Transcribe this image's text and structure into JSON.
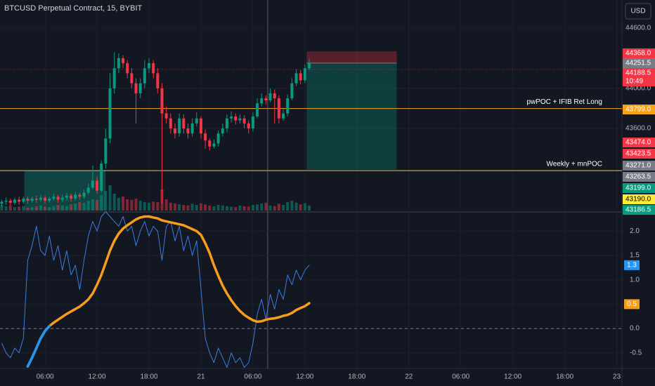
{
  "title": "BTCUSD Perpetual Contract, 15, BYBIT",
  "currency_button": "USD",
  "chart_data": [
    {
      "type": "candlestick",
      "x": [
        1,
        1.5,
        2,
        2.5,
        3,
        3.5,
        4,
        4.5,
        5,
        5.5,
        6,
        6.5,
        7,
        7.5,
        8,
        8.5,
        9,
        9.5,
        10,
        10.5,
        11,
        11.5,
        12,
        12.5,
        13,
        13.5,
        14,
        14.5,
        15,
        15.5,
        16,
        16.5,
        17,
        17.5,
        18,
        18.5,
        19,
        19.5,
        20,
        20.5,
        21,
        21.5,
        22,
        22.5,
        23,
        23.5,
        24,
        24.5,
        25,
        25.5,
        26,
        26.5,
        27,
        27.5,
        28,
        28.5,
        29,
        29.5,
        30,
        30.5,
        31,
        31.5,
        32,
        32.5,
        33,
        33.5,
        34,
        34.5,
        35,
        35.5,
        36,
        36.5
      ],
      "open": [
        42850,
        42870,
        42880,
        42860,
        42890,
        42870,
        42900,
        42880,
        42900,
        42890,
        42910,
        42880,
        42900,
        42920,
        42890,
        42910,
        42930,
        42900,
        42940,
        42920,
        42960,
        43010,
        43080,
        42980,
        43250,
        43500,
        44000,
        44200,
        44300,
        44250,
        44150,
        44050,
        43950,
        44050,
        44200,
        44250,
        44150,
        44000,
        43750,
        43700,
        43600,
        43550,
        43700,
        43600,
        43550,
        43650,
        43700,
        43550,
        43480,
        43420,
        43450,
        43550,
        43600,
        43700,
        43720,
        43680,
        43700,
        43650,
        43600,
        43720,
        43850,
        43900,
        43880,
        43950,
        43900,
        43700,
        43750,
        43900,
        44050,
        44150,
        44080,
        44200
      ],
      "high": [
        42890,
        42910,
        42900,
        42910,
        42920,
        42920,
        42920,
        42920,
        42930,
        42940,
        42930,
        42920,
        42950,
        42940,
        42940,
        42960,
        42950,
        42970,
        42960,
        42990,
        43050,
        43230,
        43120,
        43280,
        43600,
        44150,
        44360,
        44350,
        44330,
        44280,
        44200,
        44100,
        44100,
        44280,
        44300,
        44280,
        44200,
        44050,
        43820,
        43750,
        43650,
        43750,
        43740,
        43650,
        43700,
        43760,
        43720,
        43590,
        43500,
        43490,
        43580,
        43650,
        43740,
        43770,
        43750,
        43740,
        43730,
        43680,
        43760,
        43900,
        43950,
        43930,
        44000,
        43990,
        43930,
        43790,
        43940,
        44100,
        44190,
        44180,
        44240,
        44300
      ],
      "low": [
        42820,
        42840,
        42830,
        42840,
        42840,
        42850,
        42850,
        42860,
        42860,
        42870,
        42850,
        42860,
        42880,
        42860,
        42870,
        42880,
        42870,
        42880,
        42890,
        42900,
        42940,
        42990,
        42950,
        42960,
        43200,
        43450,
        43950,
        44150,
        44200,
        44100,
        44000,
        43650,
        43900,
        44000,
        44150,
        44100,
        43950,
        42850,
        43650,
        43550,
        43500,
        43520,
        43550,
        43500,
        43520,
        43620,
        43500,
        43400,
        43380,
        43400,
        43420,
        43520,
        43560,
        43660,
        43640,
        43650,
        43600,
        43550,
        43570,
        43700,
        43820,
        43840,
        43860,
        43650,
        43650,
        43680,
        43720,
        43880,
        44020,
        44040,
        44050,
        44180
      ],
      "close": [
        42870,
        42880,
        42860,
        42890,
        42870,
        42900,
        42880,
        42900,
        42890,
        42910,
        42880,
        42900,
        42920,
        42890,
        42910,
        42930,
        42900,
        42940,
        42920,
        42960,
        43010,
        43080,
        42980,
        43250,
        43500,
        44000,
        44200,
        44300,
        44250,
        44150,
        44050,
        43950,
        44050,
        44200,
        44250,
        44150,
        44000,
        43750,
        43700,
        43600,
        43550,
        43700,
        43600,
        43550,
        43650,
        43700,
        43550,
        43480,
        43420,
        43450,
        43550,
        43600,
        43700,
        43720,
        43680,
        43700,
        43650,
        43600,
        43720,
        43850,
        43900,
        43880,
        43950,
        43900,
        43700,
        43750,
        43900,
        44050,
        44150,
        44080,
        44200,
        44250
      ],
      "volume": [
        20,
        15,
        18,
        12,
        14,
        16,
        10,
        12,
        15,
        18,
        14,
        12,
        16,
        20,
        18,
        15,
        22,
        25,
        30,
        28,
        35,
        40,
        38,
        55,
        70,
        90,
        60,
        45,
        50,
        40,
        38,
        42,
        35,
        30,
        28,
        32,
        30,
        75,
        40,
        28,
        25,
        22,
        20,
        18,
        24,
        20,
        26,
        22,
        18,
        15,
        20,
        18,
        16,
        14,
        12,
        18,
        15,
        14,
        20,
        22,
        25,
        28,
        18,
        16,
        24,
        20,
        30,
        35,
        28,
        22,
        26,
        18
      ],
      "volume_lim": [
        0,
        100
      ],
      "up_color": "#089981",
      "down_color": "#f23645",
      "xlim": [
        0.8,
        72.6
      ],
      "ylim": [
        42782,
        44880
      ],
      "yticks": [
        {
          "value": 44600,
          "label": "44600.0"
        },
        {
          "value": 44000,
          "label": "44000.0"
        },
        {
          "value": 43600,
          "label": "43600.0"
        }
      ],
      "levels": [
        {
          "label": "pwPOC + IFIB Ret Long",
          "value": 43799,
          "color": "#f7a21b"
        },
        {
          "label": "Weekly + mnPOC",
          "value": 43180,
          "color": "#e5c34a"
        }
      ],
      "zone": {
        "x_range": [
          3.6,
          13
        ],
        "top": 43180,
        "color": "#089981"
      },
      "position_x_range": [
        36.2,
        46.6
      ],
      "crosshair_x": 31.7,
      "price_tags": [
        {
          "value": 44368,
          "label": "44368.0",
          "color": "#f23645"
        },
        {
          "value": 44251.5,
          "label": "44251.5",
          "color": "#787b86"
        },
        {
          "value": 44188.5,
          "label": "44188.5",
          "color": "#f23645"
        },
        {
          "value": 43799,
          "label": "43799.0",
          "color": "#f7a21b"
        },
        {
          "value": 43474,
          "label": "43474.0",
          "color": "#f23645"
        },
        {
          "value": 43423.5,
          "label": "43423.5",
          "color": "#f23645"
        },
        {
          "value": 43271,
          "label": "43271.0",
          "color": "#787b86"
        },
        {
          "value": 43263.5,
          "label": "43263.5",
          "color": "#787b86"
        },
        {
          "value": 43199,
          "label": "43199.0",
          "color": "#089981"
        },
        {
          "value": 43190,
          "label": "43190.0",
          "color": "#ffeb3b",
          "text_color": "#000000"
        },
        {
          "value": 43186.5,
          "label": "43186.5",
          "color": "#089981"
        }
      ],
      "countdown": "10:49"
    },
    {
      "type": "line",
      "x": [
        1,
        1.5,
        2,
        2.5,
        3,
        3.5,
        4,
        4.5,
        5,
        5.5,
        6,
        6.5,
        7,
        7.5,
        8,
        8.5,
        9,
        9.5,
        10,
        10.5,
        11,
        11.5,
        12,
        12.5,
        13,
        13.5,
        14,
        14.5,
        15,
        15.5,
        16,
        16.5,
        17,
        17.5,
        18,
        18.5,
        19,
        19.5,
        20,
        20.5,
        21,
        21.5,
        22,
        22.5,
        23,
        23.5,
        24,
        24.5,
        25,
        25.5,
        26,
        26.5,
        27,
        27.5,
        28,
        28.5,
        29,
        29.5,
        30,
        30.5,
        31,
        31.5,
        32,
        32.5,
        33,
        33.5,
        34,
        34.5,
        35,
        35.5,
        36,
        36.5
      ],
      "series": [
        {
          "color": "#3b7ddd",
          "width": 1,
          "values": [
            -0.3,
            -0.5,
            -0.6,
            -0.4,
            -0.5,
            -0.2,
            1.4,
            1.7,
            2.1,
            1.6,
            1.5,
            1.9,
            1.4,
            1.7,
            1.2,
            1.6,
            1.1,
            1.3,
            0.8,
            1.4,
            1.9,
            2.2,
            2.0,
            2.3,
            2.4,
            2.3,
            2.2,
            2.1,
            2.3,
            2.0,
            2.1,
            1.7,
            2.0,
            2.2,
            1.9,
            2.1,
            2.0,
            1.4,
            2.1,
            2.2,
            1.8,
            2.1,
            1.6,
            1.9,
            1.5,
            1.8,
            0.8,
            -0.2,
            -0.5,
            -0.7,
            -0.4,
            -0.6,
            -0.8,
            -0.5,
            -0.7,
            -0.6,
            -0.8,
            -0.7,
            -0.3,
            0.3,
            0.6,
            0.2,
            0.7,
            0.4,
            0.8,
            0.6,
            1.1,
            0.9,
            1.2,
            1.0,
            1.2,
            1.3
          ]
        },
        {
          "color": "#f89c1c",
          "negative_color": "#2196f3",
          "width": 3.5,
          "values": [
            null,
            null,
            null,
            null,
            null,
            null,
            -0.78,
            -0.6,
            -0.4,
            -0.2,
            -0.05,
            0.05,
            0.12,
            0.18,
            0.24,
            0.3,
            0.35,
            0.4,
            0.45,
            0.52,
            0.6,
            0.72,
            0.9,
            1.1,
            1.35,
            1.6,
            1.8,
            1.95,
            2.05,
            2.12,
            2.18,
            2.24,
            2.28,
            2.3,
            2.3,
            2.28,
            2.26,
            2.22,
            2.2,
            2.18,
            2.16,
            2.14,
            2.12,
            2.08,
            2.04,
            2.0,
            1.92,
            1.75,
            1.55,
            1.3,
            1.08,
            0.88,
            0.72,
            0.58,
            0.46,
            0.36,
            0.28,
            0.22,
            0.17,
            0.14,
            0.15,
            0.18,
            0.2,
            0.21,
            0.23,
            0.26,
            0.28,
            0.32,
            0.38,
            0.42,
            0.46,
            0.52
          ]
        }
      ],
      "xlim": [
        0.8,
        72.6
      ],
      "ylim": [
        -0.82,
        2.35
      ],
      "yticks": [
        {
          "value": 2,
          "label": "2.0"
        },
        1.5,
        {
          "value": 1,
          "label": "1.0"
        },
        0.5,
        {
          "value": 0,
          "label": "0.0"
        },
        -0.5
      ],
      "reference_line": 0,
      "xticks": [
        {
          "value": 6,
          "label": "06:00"
        },
        {
          "value": 12,
          "label": "12:00"
        },
        {
          "value": 18,
          "label": "18:00"
        },
        {
          "value": 24,
          "label": "21"
        },
        {
          "value": 30,
          "label": "06:00"
        },
        {
          "value": 36,
          "label": "12:00"
        },
        {
          "value": 42,
          "label": "18:00"
        },
        {
          "value": 48,
          "label": "22"
        },
        {
          "value": 54,
          "label": "06:00"
        },
        {
          "value": 60,
          "label": "12:00"
        },
        {
          "value": 66,
          "label": "18:00"
        },
        {
          "value": 72,
          "label": "23"
        }
      ],
      "tags": [
        {
          "value": 1.3,
          "color": "#2196f3"
        },
        {
          "value": 0.5,
          "color": "#f89c1c"
        }
      ]
    }
  ]
}
